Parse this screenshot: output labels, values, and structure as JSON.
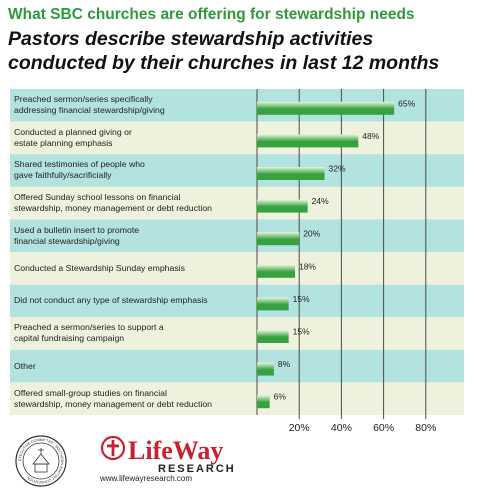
{
  "header": {
    "supertitle": "What SBC churches are offering for stewardship needs",
    "title_line1": "Pastors describe stewardship activities",
    "title_line2": "conducted by their churches in last 12 months"
  },
  "chart_data": {
    "type": "bar",
    "orientation": "horizontal",
    "categories": [
      [
        "Preached sermon/series specifically",
        "addressing financial stewardship/giving"
      ],
      [
        "Conducted a planned giving or",
        "estate planning emphasis"
      ],
      [
        "Shared testimonies of people who",
        "gave faithfully/sacrificially"
      ],
      [
        "Offered Sunday school lessons on financial",
        "stewardship, money management or debt reduction"
      ],
      [
        "Used a bulletin insert to promote",
        "financial stewardship/giving"
      ],
      [
        "Conducted a Stewardship Sunday emphasis"
      ],
      [
        "Did not conduct any type of stewardship emphasis"
      ],
      [
        "Preached a sermon/series to support a",
        "capital fundraising campaign"
      ],
      [
        "Other"
      ],
      [
        "Offered small-group studies on financial",
        "stewardship, money management or debt reduction"
      ]
    ],
    "values": [
      65,
      48,
      32,
      24,
      20,
      18,
      15,
      15,
      8,
      6
    ],
    "value_labels": [
      "65%",
      "48%",
      "32%",
      "24%",
      "20%",
      "18%",
      "15%",
      "15%",
      "8%",
      "6%"
    ],
    "xlim": [
      0,
      100
    ],
    "xticks": [
      20,
      40,
      60,
      80
    ],
    "xtick_labels": [
      "20%",
      "40%",
      "60%",
      "80%"
    ],
    "grid": "vertical",
    "colors": {
      "row_teal": "#b2e3e0",
      "row_cream": "#eef2dc",
      "bar_dark": "#35a13f",
      "bar_light": "#e6f5d8",
      "grid": "#4a4a4a"
    }
  },
  "footer": {
    "logo_text": "LifeWay",
    "logo_subtext": "RESEARCH",
    "seal_text": "EXECUTIVE COMMITTEE · SOUTHERN BAPTIST CONVENTION",
    "url": "www.lifewayresearch.com",
    "brand_color": "#c8202e"
  }
}
